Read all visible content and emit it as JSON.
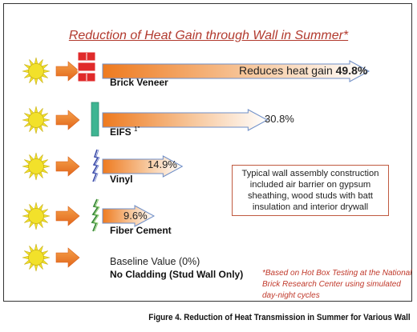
{
  "title": "Reduction of Heat Gain through Wall in Summer*",
  "rows": [
    {
      "label": "Brick Veneer",
      "value_prefix": "Reduces heat gain ",
      "value": "49.8%",
      "reduction_pct": 49.8,
      "cladding_icon": "brick-veneer-icon"
    },
    {
      "label": "EIFS",
      "label_sup": "1\"",
      "value": "30.8%",
      "reduction_pct": 30.8,
      "cladding_icon": "eifs-icon"
    },
    {
      "label": "Vinyl",
      "value": "14.9%",
      "reduction_pct": 14.9,
      "cladding_icon": "vinyl-siding-icon"
    },
    {
      "label": "Fiber Cement",
      "value": "9.6%",
      "reduction_pct": 9.6,
      "cladding_icon": "fiber-cement-icon"
    }
  ],
  "baseline": {
    "value_text": "Baseline Value (0%)",
    "label": "No Cladding (Stud Wall Only)",
    "reduction_pct": 0
  },
  "note": "Typical wall assembly construction included air barrier on gypsum sheathing, wood studs with batt insulation and interior drywall",
  "footnote": "*Based on Hot Box Testing at the National Brick Research Center using simulated day-night cycles",
  "caption": "Figure 4. Reduction of Heat Transmission in Summer for Various Wall",
  "colors": {
    "title": "#b23a2e",
    "arrow_start": "#ee7a1f",
    "arrow_end": "#ffffff",
    "arrow_outline": "#6f8fc8",
    "brick": "#e02a2a",
    "eifs": "#3fb592",
    "sun": "#f2e12a"
  }
}
